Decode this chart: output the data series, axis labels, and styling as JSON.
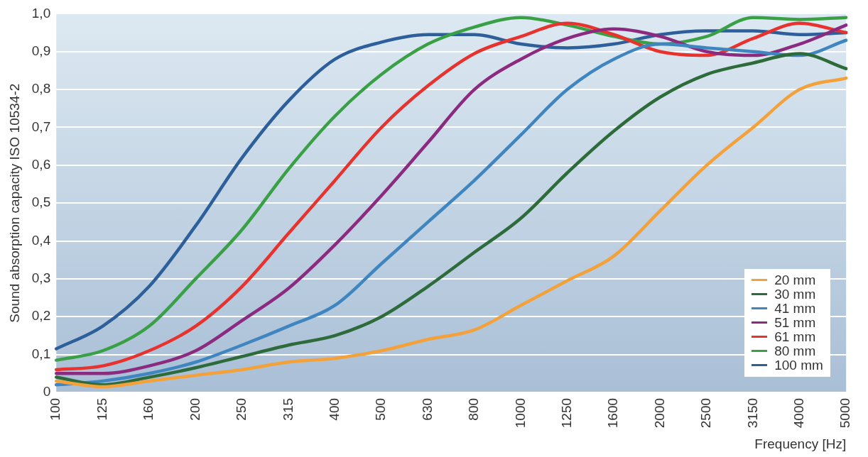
{
  "chart_data": {
    "type": "line",
    "xlabel": "Frequency [Hz]",
    "ylabel": "Sound absorption capacity ISO 10534-2",
    "categories": [
      "100",
      "125",
      "160",
      "200",
      "250",
      "315",
      "400",
      "500",
      "630",
      "800",
      "1000",
      "1250",
      "1600",
      "2000",
      "2500",
      "3150",
      "4000",
      "5000"
    ],
    "series": [
      {
        "name": "20 mm",
        "color": "#f4a13a",
        "values": [
          0.03,
          0.015,
          0.03,
          0.045,
          0.06,
          0.08,
          0.09,
          0.11,
          0.14,
          0.165,
          0.23,
          0.295,
          0.36,
          0.48,
          0.6,
          0.7,
          0.8,
          0.83
        ]
      },
      {
        "name": "30 mm",
        "color": "#2e6b3a",
        "values": [
          0.04,
          0.02,
          0.04,
          0.065,
          0.095,
          0.125,
          0.15,
          0.2,
          0.28,
          0.37,
          0.46,
          0.58,
          0.69,
          0.78,
          0.84,
          0.87,
          0.895,
          0.855
        ]
      },
      {
        "name": "41 mm",
        "color": "#3f86c0",
        "values": [
          0.02,
          0.03,
          0.05,
          0.08,
          0.125,
          0.175,
          0.23,
          0.34,
          0.45,
          0.56,
          0.68,
          0.8,
          0.88,
          0.92,
          0.91,
          0.9,
          0.89,
          0.93
        ]
      },
      {
        "name": "51 mm",
        "color": "#8b2a7e",
        "values": [
          0.05,
          0.05,
          0.07,
          0.11,
          0.19,
          0.275,
          0.39,
          0.52,
          0.66,
          0.8,
          0.88,
          0.935,
          0.96,
          0.94,
          0.9,
          0.89,
          0.92,
          0.97
        ]
      },
      {
        "name": "61 mm",
        "color": "#e8322e",
        "values": [
          0.06,
          0.07,
          0.11,
          0.175,
          0.28,
          0.42,
          0.56,
          0.7,
          0.81,
          0.895,
          0.94,
          0.975,
          0.945,
          0.9,
          0.89,
          0.935,
          0.975,
          0.95
        ]
      },
      {
        "name": "80 mm",
        "color": "#3aa045",
        "values": [
          0.085,
          0.11,
          0.175,
          0.3,
          0.43,
          0.59,
          0.73,
          0.84,
          0.92,
          0.965,
          0.99,
          0.97,
          0.94,
          0.92,
          0.94,
          0.99,
          0.985,
          0.99
        ]
      },
      {
        "name": "100 mm",
        "color": "#2d5f9a",
        "values": [
          0.115,
          0.175,
          0.28,
          0.44,
          0.62,
          0.77,
          0.88,
          0.925,
          0.945,
          0.945,
          0.92,
          0.91,
          0.92,
          0.945,
          0.955,
          0.955,
          0.945,
          0.95
        ]
      }
    ],
    "ylim": [
      0,
      1
    ],
    "yticks": [
      {
        "value": 0,
        "label": "0"
      },
      {
        "value": 0.1,
        "label": "0,1"
      },
      {
        "value": 0.2,
        "label": "0,2"
      },
      {
        "value": 0.3,
        "label": "0,3"
      },
      {
        "value": 0.4,
        "label": "0,4"
      },
      {
        "value": 0.5,
        "label": "0,5"
      },
      {
        "value": 0.6,
        "label": "0,6"
      },
      {
        "value": 0.7,
        "label": "0,7"
      },
      {
        "value": 0.8,
        "label": "0,8"
      },
      {
        "value": 0.9,
        "label": "0,9"
      },
      {
        "value": 1,
        "label": "1,0"
      }
    ],
    "grid": "y",
    "legend": "bottom right",
    "marker": "none",
    "line_style": "solid"
  }
}
